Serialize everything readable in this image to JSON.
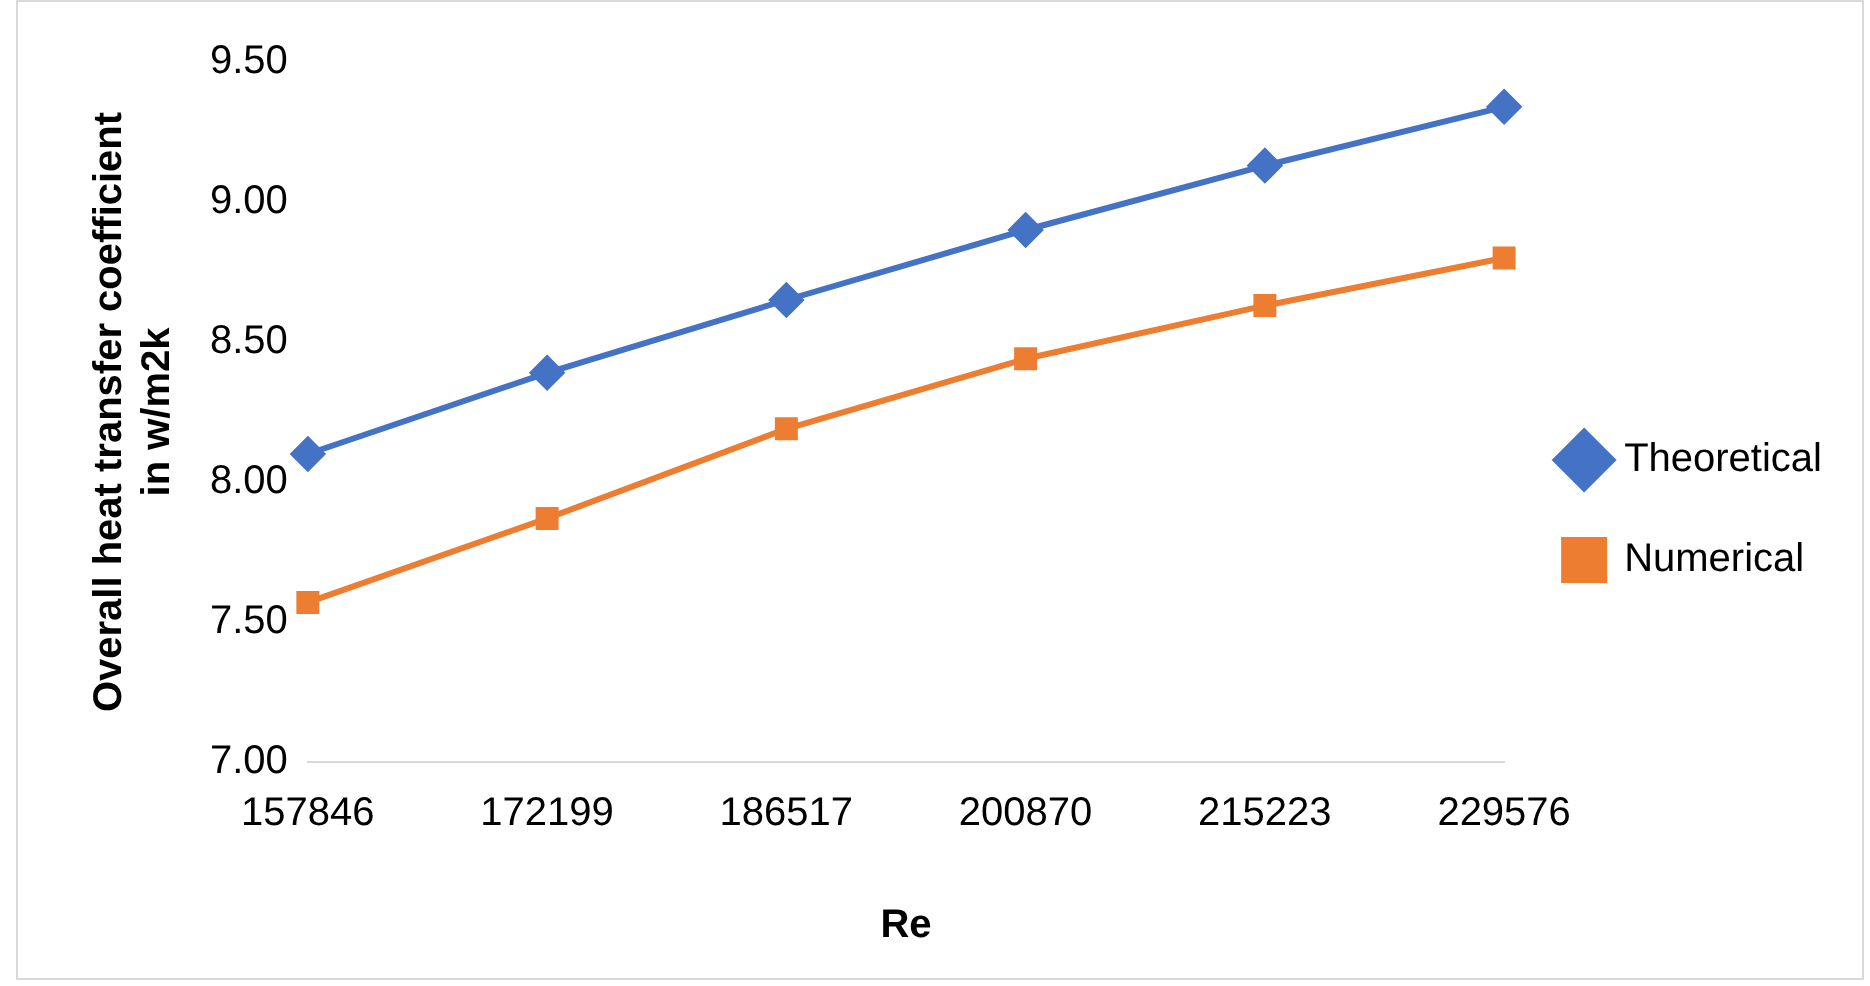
{
  "chart_data": {
    "type": "line",
    "xlabel": "Re",
    "ylabel": "Overall heat transfer coefficient in w/m2k",
    "categories": [
      "157846",
      "172199",
      "186517",
      "200870",
      "215223",
      "229576"
    ],
    "series": [
      {
        "name": "Theoretical",
        "color": "#4472c4",
        "marker": "diamond",
        "values": [
          8.1,
          8.39,
          8.65,
          8.9,
          9.13,
          9.34
        ]
      },
      {
        "name": "Numerical",
        "color": "#ed7d31",
        "marker": "square",
        "values": [
          7.57,
          7.87,
          8.19,
          8.44,
          8.63,
          8.8
        ]
      }
    ],
    "ylim": [
      7.0,
      9.5
    ],
    "yticks": [
      {
        "value": 7.0,
        "label": "7.00"
      },
      {
        "value": 7.5,
        "label": "7.50"
      },
      {
        "value": 8.0,
        "label": "8.00"
      },
      {
        "value": 8.5,
        "label": "8.50"
      },
      {
        "value": 9.0,
        "label": "9.00"
      },
      {
        "value": 9.5,
        "label": "9.50"
      }
    ],
    "grid": false,
    "legend": "right",
    "line_style": "solid"
  }
}
